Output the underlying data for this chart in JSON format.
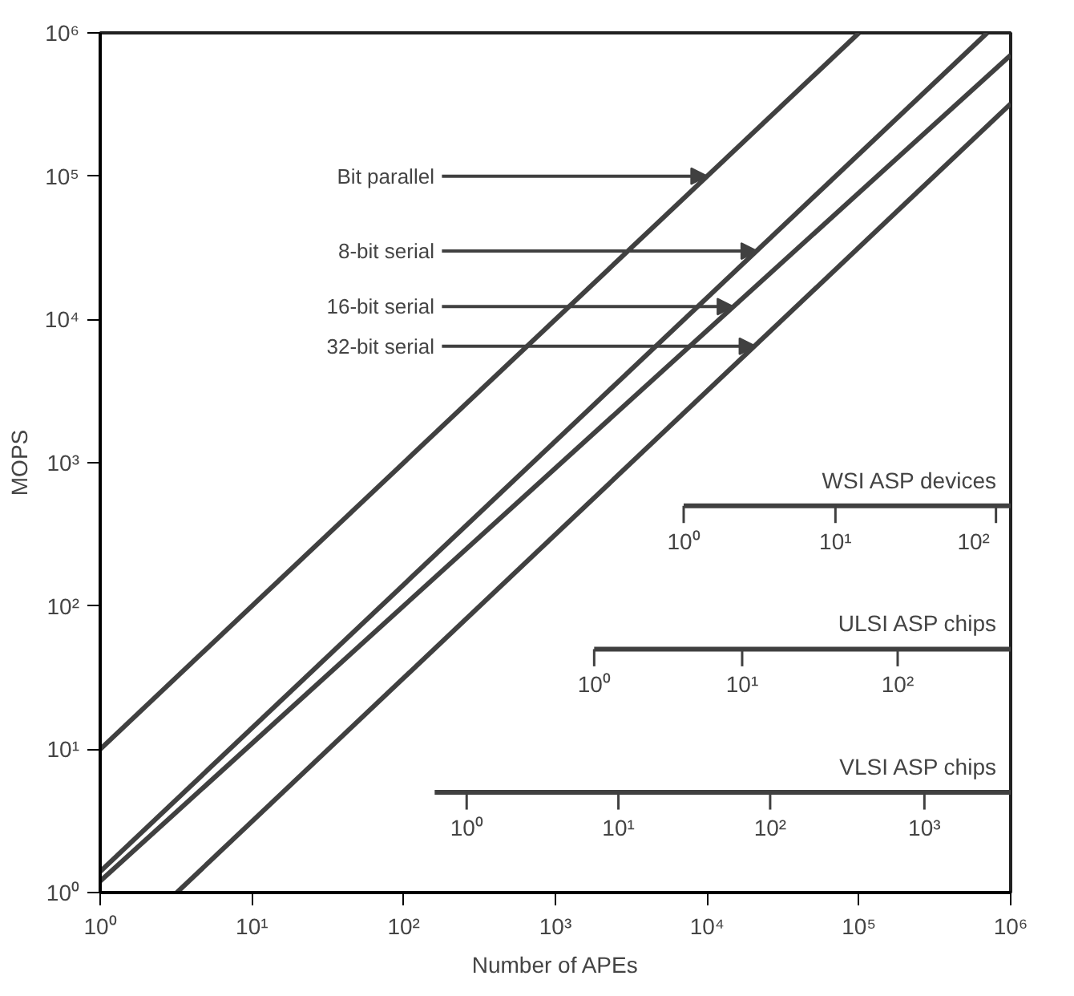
{
  "chart_data": {
    "type": "line",
    "log": "xy",
    "xlabel": "Number of APEs",
    "ylabel": "MOPS",
    "xlim": [
      1,
      1000000
    ],
    "ylim": [
      1,
      1000000
    ],
    "xticks": [
      {
        "value": 1,
        "label": "10⁰"
      },
      {
        "value": 10,
        "label": "10¹"
      },
      {
        "value": 100,
        "label": "10²"
      },
      {
        "value": 1000,
        "label": "10³"
      },
      {
        "value": 10000,
        "label": "10⁴"
      },
      {
        "value": 100000,
        "label": "10⁵"
      },
      {
        "value": 1000000,
        "label": "10⁶"
      }
    ],
    "yticks": [
      {
        "value": 1,
        "label": "10⁰"
      },
      {
        "value": 10,
        "label": "10¹"
      },
      {
        "value": 100,
        "label": "10²"
      },
      {
        "value": 1000,
        "label": "10³"
      },
      {
        "value": 10000,
        "label": "10⁴"
      },
      {
        "value": 100000,
        "label": "10⁵"
      },
      {
        "value": 1000000,
        "label": "10⁶"
      }
    ],
    "grid": false,
    "series": [
      {
        "color": "#404040",
        "x": [
          1,
          100000
        ],
        "values": [
          10,
          1000000
        ]
      },
      {
        "color": "#404040",
        "x": [
          1,
          700000
        ],
        "values": [
          1.4,
          1000000
        ]
      },
      {
        "color": "#404040",
        "x": [
          1,
          1000000
        ],
        "values": [
          1.2,
          700000
        ]
      },
      {
        "color": "#404040",
        "x": [
          3.2,
          1000000
        ],
        "values": [
          1,
          320000
        ]
      },
      {
        "name": "WSI ASP devices",
        "color": "#404040",
        "x": [
          7000,
          1000000
        ],
        "values": [
          500,
          500
        ]
      },
      {
        "name": "ULSI ASP chips",
        "color": "#404040",
        "x": [
          1800,
          1000000
        ],
        "values": [
          50,
          50
        ]
      },
      {
        "name": "VLSI ASP chips",
        "color": "#404040",
        "x": [
          160,
          1000000
        ],
        "values": [
          5,
          5
        ]
      }
    ],
    "annotations": [
      {
        "text": "Bit parallel",
        "x": 10000,
        "y": 100000
      },
      {
        "text": "8-bit serial",
        "x": 21400,
        "y": 30000
      },
      {
        "text": "16-bit serial",
        "x": 14900,
        "y": 12300
      },
      {
        "text": "32-bit serial",
        "x": 20800,
        "y": 6500
      },
      {
        "text": "10⁰",
        "x": 7000,
        "y": 500
      },
      {
        "text": "10¹",
        "x": 70000,
        "y": 500
      },
      {
        "text": "10²",
        "x": 800000,
        "y": 500
      },
      {
        "text": "10⁰",
        "x": 1800,
        "y": 50
      },
      {
        "text": "10¹",
        "x": 17000,
        "y": 50
      },
      {
        "text": "10²",
        "x": 180000,
        "y": 50
      },
      {
        "text": "10⁰",
        "x": 260,
        "y": 5
      },
      {
        "text": "10¹",
        "x": 2600,
        "y": 5
      },
      {
        "text": "10²",
        "x": 26000,
        "y": 5
      },
      {
        "text": "10³",
        "x": 270000,
        "y": 5
      }
    ]
  }
}
